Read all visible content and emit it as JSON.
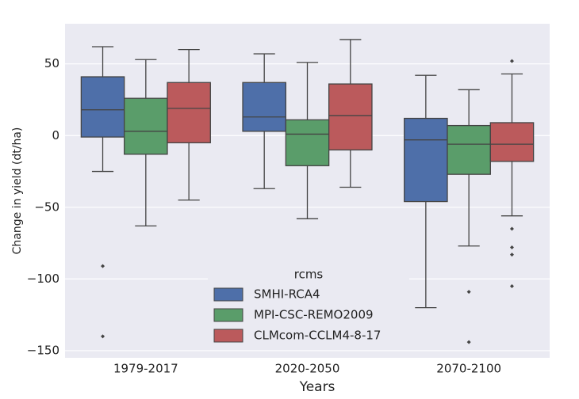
{
  "chart_data": {
    "type": "box",
    "x_label": "Years",
    "y_label": "Change in yield (dt/ha)",
    "categories": [
      "1979-2017",
      "2020-2050",
      "2070-2100"
    ],
    "ylim": [
      -155,
      78
    ],
    "yticks": [
      {
        "value": -150,
        "label": "−150"
      },
      {
        "value": -100,
        "label": "−100"
      },
      {
        "value": -50,
        "label": "−50"
      },
      0,
      50
    ],
    "grid": true,
    "legend_title": "rcms",
    "legend_position": "lower center",
    "series": [
      {
        "name": "SMHI-RCA4",
        "color": "#4e6fa9",
        "boxes": [
          {
            "whislo": -25,
            "q1": -1,
            "med": 18,
            "q3": 41,
            "whishi": 62,
            "fliers": [
              -91,
              -140
            ]
          },
          {
            "whislo": -37,
            "q1": 3,
            "med": 13,
            "q3": 37,
            "whishi": 57,
            "fliers": []
          },
          {
            "whislo": -120,
            "q1": -46,
            "med": -3,
            "q3": 12,
            "whishi": 42,
            "fliers": []
          }
        ]
      },
      {
        "name": "MPI-CSC-REMO2009",
        "color": "#5a9d6a",
        "boxes": [
          {
            "whislo": -63,
            "q1": -13,
            "med": 3,
            "q3": 26,
            "whishi": 53,
            "fliers": []
          },
          {
            "whislo": -58,
            "q1": -21,
            "med": 1,
            "q3": 11,
            "whishi": 51,
            "fliers": []
          },
          {
            "whislo": -77,
            "q1": -27,
            "med": -6,
            "q3": 7,
            "whishi": 32,
            "fliers": [
              -109,
              -144
            ]
          }
        ]
      },
      {
        "name": "CLMcom-CCLM4-8-17",
        "color": "#bb5a5c",
        "boxes": [
          {
            "whislo": -45,
            "q1": -5,
            "med": 19,
            "q3": 37,
            "whishi": 60,
            "fliers": []
          },
          {
            "whislo": -36,
            "q1": -10,
            "med": 14,
            "q3": 36,
            "whishi": 67,
            "fliers": []
          },
          {
            "whislo": -56,
            "q1": -18,
            "med": -6,
            "q3": 9,
            "whishi": 43,
            "fliers": [
              52,
              -65,
              -78,
              -83,
              -105
            ]
          }
        ]
      }
    ]
  }
}
